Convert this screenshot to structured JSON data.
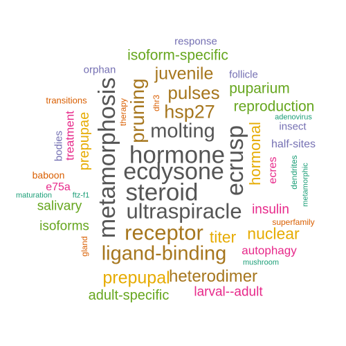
{
  "colors": {
    "gray": "#555555",
    "orange": "#D95F02",
    "purple": "#7570B3",
    "magenta": "#E7298A",
    "green": "#66A61E",
    "gold": "#E6AB02",
    "brown": "#A6761D",
    "teal": "#1B9E77"
  },
  "words": [
    {
      "text": "hormone",
      "color": "gray"
    },
    {
      "text": "ecdysone",
      "color": "gray"
    },
    {
      "text": "steroid",
      "color": "gray"
    },
    {
      "text": "metamorphosis",
      "color": "gray"
    },
    {
      "text": "ultraspiracle",
      "color": "gray"
    },
    {
      "text": "ecrusp",
      "color": "gray"
    },
    {
      "text": "molting",
      "color": "gray"
    },
    {
      "text": "receptor",
      "color": "brown"
    },
    {
      "text": "ligand-binding",
      "color": "brown"
    },
    {
      "text": "pruning",
      "color": "brown"
    },
    {
      "text": "hsp27",
      "color": "brown"
    },
    {
      "text": "pulses",
      "color": "brown"
    },
    {
      "text": "juvenile",
      "color": "brown"
    },
    {
      "text": "heterodimer",
      "color": "brown"
    },
    {
      "text": "prepupal",
      "color": "gold"
    },
    {
      "text": "titer",
      "color": "gold"
    },
    {
      "text": "nuclear",
      "color": "gold"
    },
    {
      "text": "hormonal",
      "color": "gold"
    },
    {
      "text": "prepupae",
      "color": "gold"
    },
    {
      "text": "isoform-specific",
      "color": "green"
    },
    {
      "text": "reproduction",
      "color": "green"
    },
    {
      "text": "puparium",
      "color": "green"
    },
    {
      "text": "adult-specific",
      "color": "green"
    },
    {
      "text": "salivary",
      "color": "green"
    },
    {
      "text": "isoforms",
      "color": "green"
    },
    {
      "text": "larval--adult",
      "color": "magenta"
    },
    {
      "text": "autophagy",
      "color": "magenta"
    },
    {
      "text": "insulin",
      "color": "magenta"
    },
    {
      "text": "ecres",
      "color": "magenta"
    },
    {
      "text": "treatment",
      "color": "magenta"
    },
    {
      "text": "e75a",
      "color": "magenta"
    },
    {
      "text": "response",
      "color": "purple"
    },
    {
      "text": "orphan",
      "color": "purple"
    },
    {
      "text": "follicle",
      "color": "purple"
    },
    {
      "text": "insect",
      "color": "purple"
    },
    {
      "text": "half-sites",
      "color": "purple"
    },
    {
      "text": "bodies",
      "color": "purple"
    },
    {
      "text": "transitions",
      "color": "orange"
    },
    {
      "text": "therapy",
      "color": "orange"
    },
    {
      "text": "dhr3",
      "color": "orange"
    },
    {
      "text": "baboon",
      "color": "orange"
    },
    {
      "text": "superfamily",
      "color": "orange"
    },
    {
      "text": "gland",
      "color": "orange"
    },
    {
      "text": "adenovirus",
      "color": "teal"
    },
    {
      "text": "dendrites",
      "color": "teal"
    },
    {
      "text": "metamorphic",
      "color": "teal"
    },
    {
      "text": "maturation",
      "color": "teal"
    },
    {
      "text": "ftz-f1",
      "color": "teal"
    },
    {
      "text": "mushroom",
      "color": "teal"
    }
  ]
}
